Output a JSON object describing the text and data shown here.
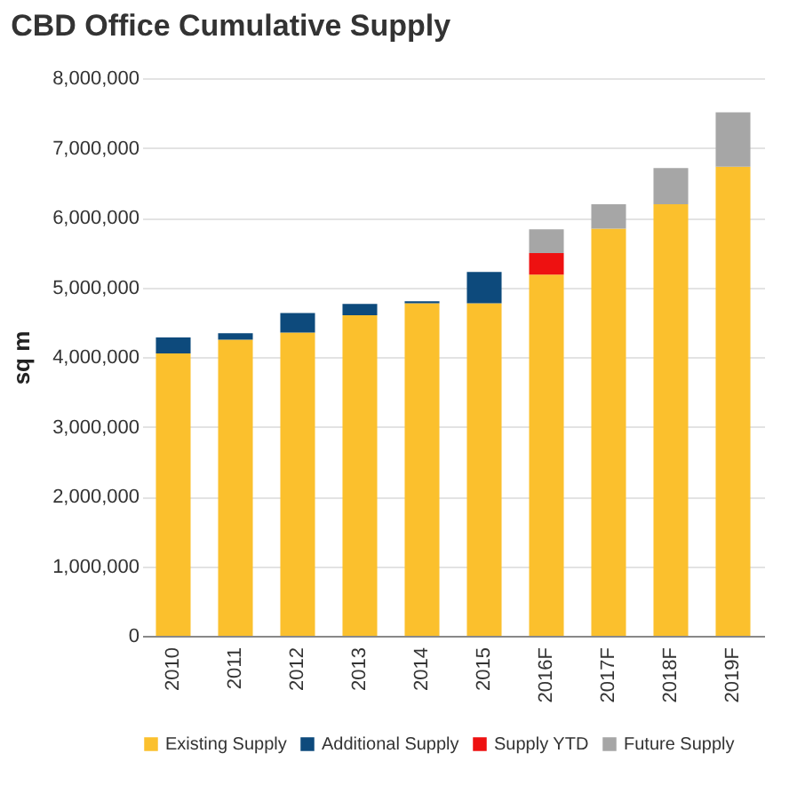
{
  "chart_data": {
    "type": "bar",
    "title": "CBD Office Cumulative Supply",
    "ylabel": "sq m",
    "stacked": true,
    "categories": [
      "2010",
      "2011",
      "2012",
      "2013",
      "2014",
      "2015",
      "2016F",
      "2017F",
      "2018F",
      "2019F"
    ],
    "series": [
      {
        "name": "Existing Supply",
        "color": "#fbc02d",
        "values": [
          4050000,
          4250000,
          4350000,
          4600000,
          4770000,
          4770000,
          5180000,
          5840000,
          6190000,
          6730000
        ]
      },
      {
        "name": "Additional Supply",
        "color": "#0d4a7c",
        "values": [
          230000,
          90000,
          280000,
          160000,
          30000,
          450000,
          null,
          null,
          null,
          null
        ]
      },
      {
        "name": "Supply YTD",
        "color": "#ee1111",
        "values": [
          null,
          null,
          null,
          null,
          null,
          null,
          310000,
          null,
          null,
          null
        ]
      },
      {
        "name": "Future Supply",
        "color": "#a6a6a6",
        "values": [
          null,
          null,
          null,
          null,
          null,
          null,
          340000,
          350000,
          520000,
          780000
        ]
      }
    ],
    "ylim": [
      0,
      8000000
    ],
    "yticks": [
      0,
      {
        "value": 1000000,
        "label": "1,000,000"
      },
      {
        "value": 2000000,
        "label": "2,000,000"
      },
      {
        "value": 3000000,
        "label": "3,000,000"
      },
      {
        "value": 4000000,
        "label": "4,000,000"
      },
      {
        "value": 5000000,
        "label": "5,000,000"
      },
      {
        "value": 6000000,
        "label": "6,000,000"
      },
      {
        "value": 7000000,
        "label": "7,000,000"
      },
      {
        "value": 8000000,
        "label": "8,000,000"
      }
    ],
    "grid": "y",
    "legend": "bottom"
  }
}
